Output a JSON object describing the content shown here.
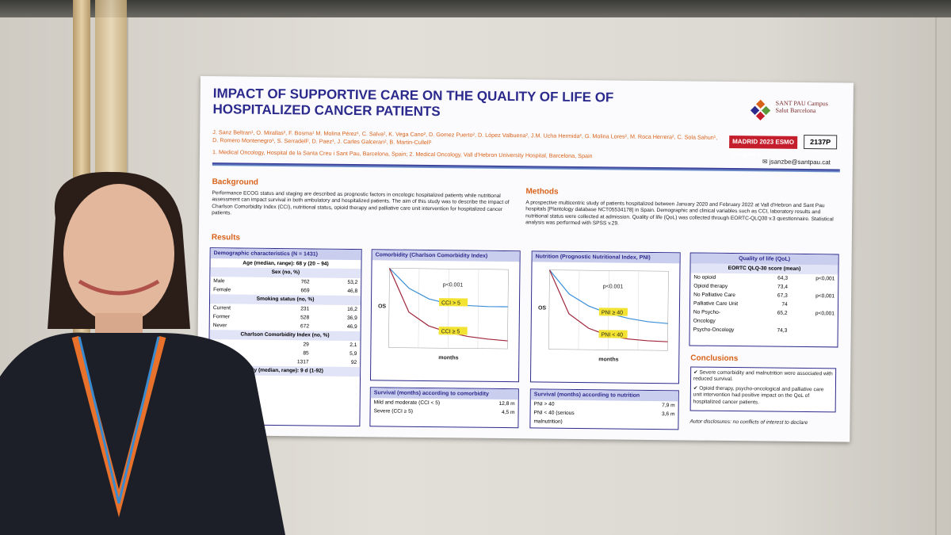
{
  "poster": {
    "title": "IMPACT OF SUPPORTIVE CARE ON THE QUALITY OF LIFE OF HOSPITALIZED CANCER PATIENTS",
    "authors": "J. Sanz Beltran¹, O. Mirallas², F. Bosma¹ M. Molina Pérez¹, C. Salva², K. Vega Cano², D. Gomez Puerto², D. López Valbuena², J.M. Ucha Hermida², G. Molina Lores², M. Roca Herrera², C. Sola Sahun¹, D. Romero Montenegro¹, S. Serradell², D. Paez¹, J. Carles Galceran², B. Martin-Cullell¹",
    "affiliations": "1. Medical Oncology, Hospital de la Santa Creu i Sant Pau, Barcelona, Spain; 2. Medical Oncology, Vall d'Hebron University Hospital, Barcelona, Spain",
    "logo_text": "SANT PAU Campus Salut Barcelona",
    "congress": "MADRID 2023 ESMO congress",
    "poster_number": "2137P",
    "email": "jsanzbe@santpau.cat",
    "background_title": "Background",
    "background_text": "Performance ECOG status and staging are described as prognostic factors in oncologic hospitalized patients while nutritional assessment can impact survival in both ambulatory and hospitalized patients. The aim of this study was to describe the impact of Charlson Comorbidity Index (CCI), nutritional status, opioid therapy and palliative care unit intervention for hospitalized cancer patients.",
    "methods_title": "Methods",
    "methods_text": "A prospective multicentric study of patients hospitalized between January 2020 and February 2022 at Vall d'Hebron and Sant Pau hospitals [Plantology database NCT05534178] in Spain. Demographic and clinical variables such as CCI, laboratory results and nutritional status were collected at admission. Quality of life (QoL) was collected through EORTC-QLQ30 v.3 questionnaire. Statistical analysis was performed with SPSS v.29.",
    "results_title": "Results",
    "demographics": {
      "header": "Demographic characteristics (N = 1431)",
      "age": "Age (median, range): 68 y (20 – 94)",
      "sex_header": "Sex (no, %)",
      "sex_rows": [
        [
          "Male",
          "762",
          "53,2"
        ],
        [
          "Female",
          "669",
          "46,8"
        ]
      ],
      "smoking_header": "Smoking status (no, %)",
      "smoking_rows": [
        [
          "Current",
          "231",
          "16,2"
        ],
        [
          "Former",
          "528",
          "36,9"
        ],
        [
          "Never",
          "672",
          "46,9"
        ]
      ],
      "cci_header": "Charlson Comorbidity Index (no, %)",
      "cci_rows": [
        [
          "",
          "29",
          "2,1"
        ],
        [
          "(3-4)",
          "85",
          "5,9"
        ],
        [
          "",
          "1317",
          "92"
        ]
      ],
      "stay": "Stay (median, range): 9 d (1-92)"
    },
    "comorbidity_chart": {
      "header": "Comorbidity (Charlson Comorbidity Index)",
      "pvalue": "p<0.001",
      "ylabel": "OS",
      "xlabel": "months",
      "legend": [
        "CCI > 5",
        "CCI ≥ 5"
      ]
    },
    "nutrition_chart": {
      "header": "Nutrition (Prognostic Nutritional Index, PNI)",
      "pvalue": "p<0.001",
      "ylabel": "OS",
      "xlabel": "months",
      "legend": [
        "PNI ≥ 40",
        "PNI < 40"
      ]
    },
    "survival_comorbidity": {
      "header": "Survival (months) according to comorbidity",
      "rows": [
        [
          "Mild and moderate (CCI < 5)",
          "12,8 m"
        ],
        [
          "Severe (CCI ≥ 5)",
          "4,5 m"
        ]
      ]
    },
    "survival_nutrition": {
      "header": "Survival (months) according to nutrition",
      "rows": [
        [
          "PNI > 40",
          "7,9 m"
        ],
        [
          "PNI < 40 (serious malnutrition)",
          "3,6 m"
        ]
      ]
    },
    "qol": {
      "header": "Quality of life (QoL)",
      "subheader": "EORTC QLQ-30 score (mean)",
      "rows": [
        [
          "No opioid",
          "64,3",
          "p<0,001"
        ],
        [
          "Opioid therapy",
          "73,4",
          ""
        ],
        [
          "No Palliative Care",
          "67,3",
          "p<0,001"
        ],
        [
          "Palliative Care Unit",
          "74",
          ""
        ],
        [
          "No Psycho-Oncology",
          "65,2",
          "p<0,001"
        ],
        [
          "Psycho-Oncology",
          "74,3",
          ""
        ]
      ]
    },
    "conclusions_title": "Conclusions",
    "conclusions": [
      "Severe comorbidity and malnutrition were associated with reduced survival.",
      "Opioid therapy, psycho-oncological and palliative care unit intervention had positive impact on the QoL of hospitalized cancer patients."
    ],
    "disclosure": "Autor disclosures: no conflicts of interest to declare"
  },
  "chart_data": [
    {
      "type": "line",
      "title": "Comorbidity (Charlson Comorbidity Index)",
      "xlabel": "months",
      "ylabel": "OS",
      "series": [
        {
          "name": "CCI > 5",
          "values": [
            1.0,
            0.75,
            0.62,
            0.56,
            0.54,
            0.53,
            0.53
          ]
        },
        {
          "name": "CCI ≥ 5",
          "values": [
            1.0,
            0.45,
            0.28,
            0.2,
            0.15,
            0.12,
            0.1
          ]
        }
      ]
    },
    {
      "type": "line",
      "title": "Nutrition (Prognostic Nutritional Index, PNI)",
      "xlabel": "months",
      "ylabel": "OS",
      "series": [
        {
          "name": "PNI ≥ 40",
          "values": [
            1.0,
            0.7,
            0.55,
            0.46,
            0.4,
            0.36,
            0.34
          ]
        },
        {
          "name": "PNI < 40",
          "values": [
            1.0,
            0.45,
            0.27,
            0.18,
            0.14,
            0.12,
            0.11
          ]
        }
      ]
    }
  ]
}
